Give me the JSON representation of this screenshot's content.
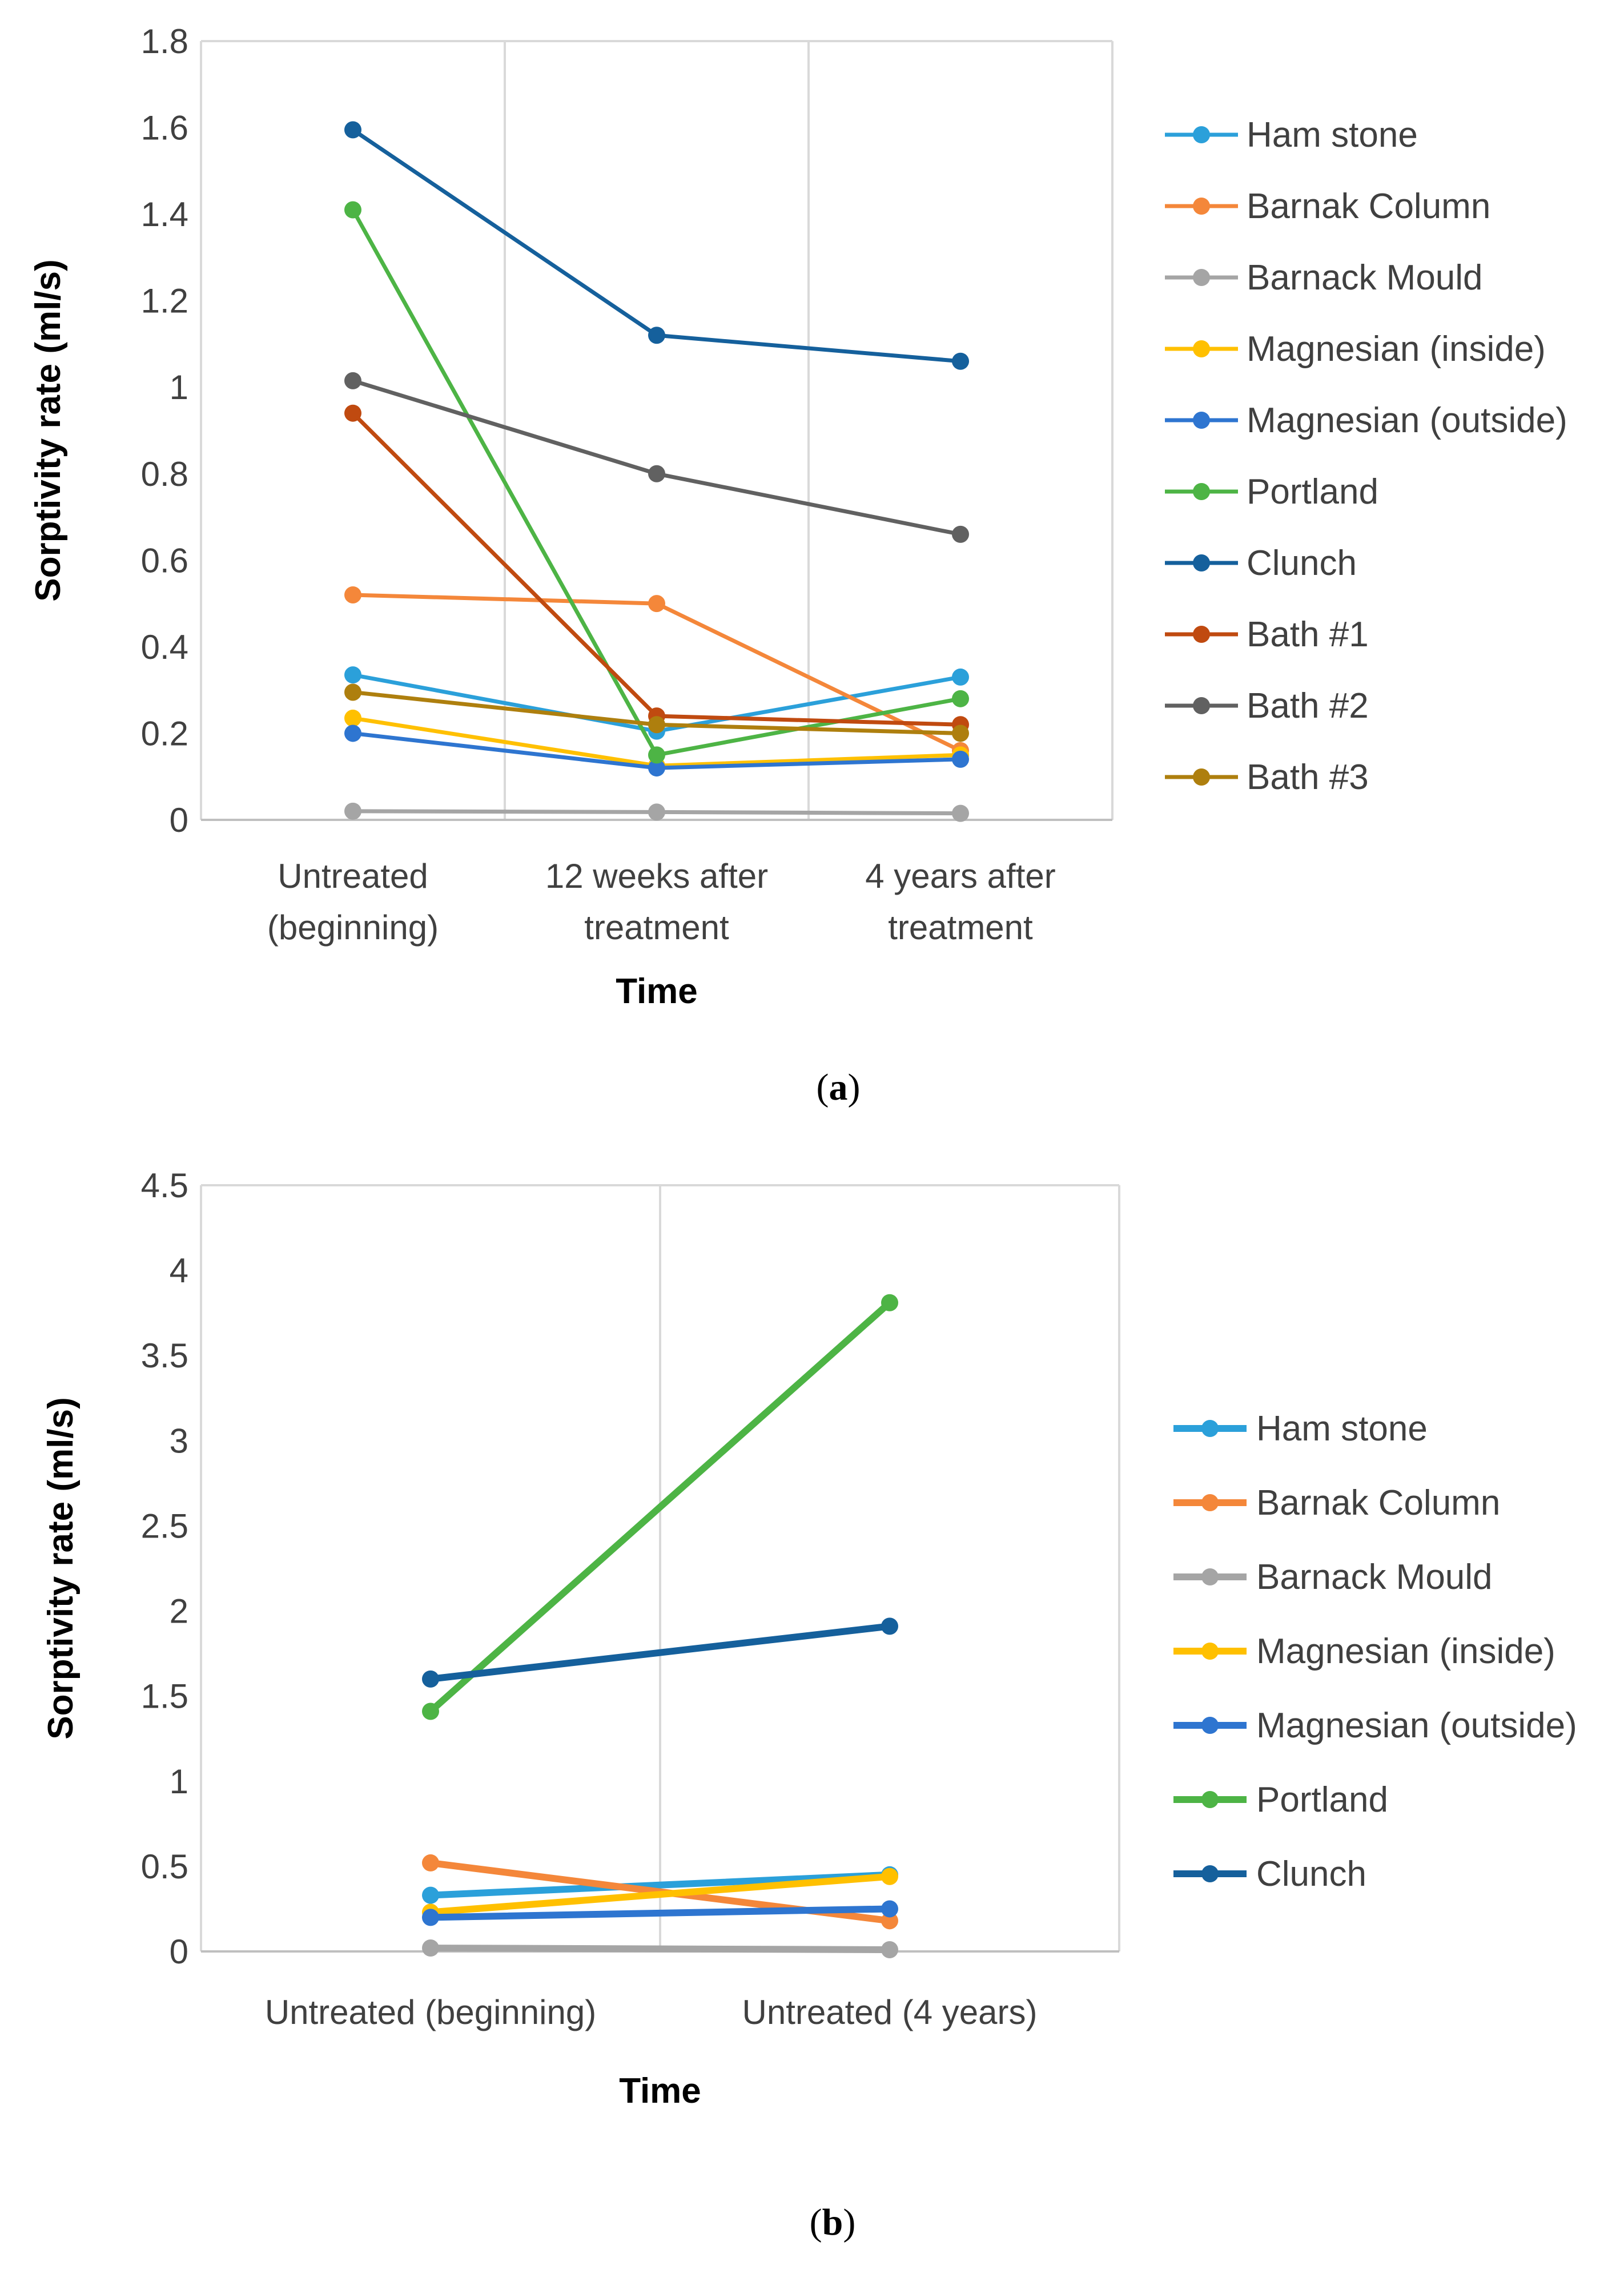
{
  "chart_data": [
    {
      "type": "line",
      "panel": "a",
      "xlabel": "Time",
      "ylabel": "Sorptivity rate (ml/s)",
      "ylim": [
        0,
        1.8
      ],
      "ystep": 0.2,
      "ytick_labels": [
        "0",
        "0.2",
        "0.4",
        "0.6",
        "0.8",
        "1",
        "1.2",
        "1.4",
        "1.6",
        "1.8"
      ],
      "categories": [
        [
          "Untreated",
          "(beginning)"
        ],
        [
          "12 weeks after",
          "treatment"
        ],
        [
          "4 years after",
          "treatment"
        ]
      ],
      "grid": true,
      "legend": "right",
      "series": [
        {
          "name": "Ham stone",
          "color": "#2BA0DA",
          "values": [
            0.335,
            0.205,
            0.33
          ]
        },
        {
          "name": "Barnak Column",
          "color": "#F4873A",
          "values": [
            0.52,
            0.5,
            0.16
          ]
        },
        {
          "name": "Barnack Mould",
          "color": "#A5A5A5",
          "values": [
            0.02,
            0.018,
            0.015
          ]
        },
        {
          "name": "Magnesian (inside)",
          "color": "#FFC000",
          "values": [
            0.235,
            0.125,
            0.15
          ]
        },
        {
          "name": "Magnesian (outside)",
          "color": "#2E75D0",
          "values": [
            0.2,
            0.12,
            0.14
          ]
        },
        {
          "name": "Portland",
          "color": "#4DB445",
          "values": [
            1.41,
            0.15,
            0.28
          ]
        },
        {
          "name": "Clunch",
          "color": "#15609C",
          "values": [
            1.595,
            1.12,
            1.06
          ]
        },
        {
          "name": "Bath #1",
          "color": "#C04A10",
          "values": [
            0.94,
            0.24,
            0.22
          ]
        },
        {
          "name": "Bath #2",
          "color": "#616161",
          "values": [
            1.015,
            0.8,
            0.66
          ]
        },
        {
          "name": "Bath #3",
          "color": "#AE7F0E",
          "values": [
            0.295,
            0.22,
            0.2
          ]
        }
      ]
    },
    {
      "type": "line",
      "panel": "b",
      "xlabel": "Time",
      "ylabel": "Sorptivity rate (ml/s)",
      "ylim": [
        0,
        4.5
      ],
      "ystep": 0.5,
      "ytick_labels": [
        "0",
        "0.5",
        "1",
        "1.5",
        "2",
        "2.5",
        "3",
        "3.5",
        "4",
        "4.5"
      ],
      "categories": [
        [
          "Untreated (beginning)"
        ],
        [
          "Untreated (4 years)"
        ]
      ],
      "grid": true,
      "legend": "right",
      "series": [
        {
          "name": "Ham stone",
          "color": "#2BA0DA",
          "values": [
            0.33,
            0.45
          ]
        },
        {
          "name": "Barnak Column",
          "color": "#F4873A",
          "values": [
            0.52,
            0.18
          ]
        },
        {
          "name": "Barnack Mould",
          "color": "#A5A5A5",
          "values": [
            0.02,
            0.01
          ]
        },
        {
          "name": "Magnesian (inside)",
          "color": "#FFC000",
          "values": [
            0.23,
            0.44
          ]
        },
        {
          "name": "Magnesian (outside)",
          "color": "#2E75D0",
          "values": [
            0.2,
            0.25
          ]
        },
        {
          "name": "Portland",
          "color": "#4DB445",
          "values": [
            1.41,
            3.81
          ]
        },
        {
          "name": "Clunch",
          "color": "#15609C",
          "values": [
            1.6,
            1.91
          ]
        }
      ]
    }
  ],
  "panel_labels": [
    "(a)",
    "(b)"
  ]
}
